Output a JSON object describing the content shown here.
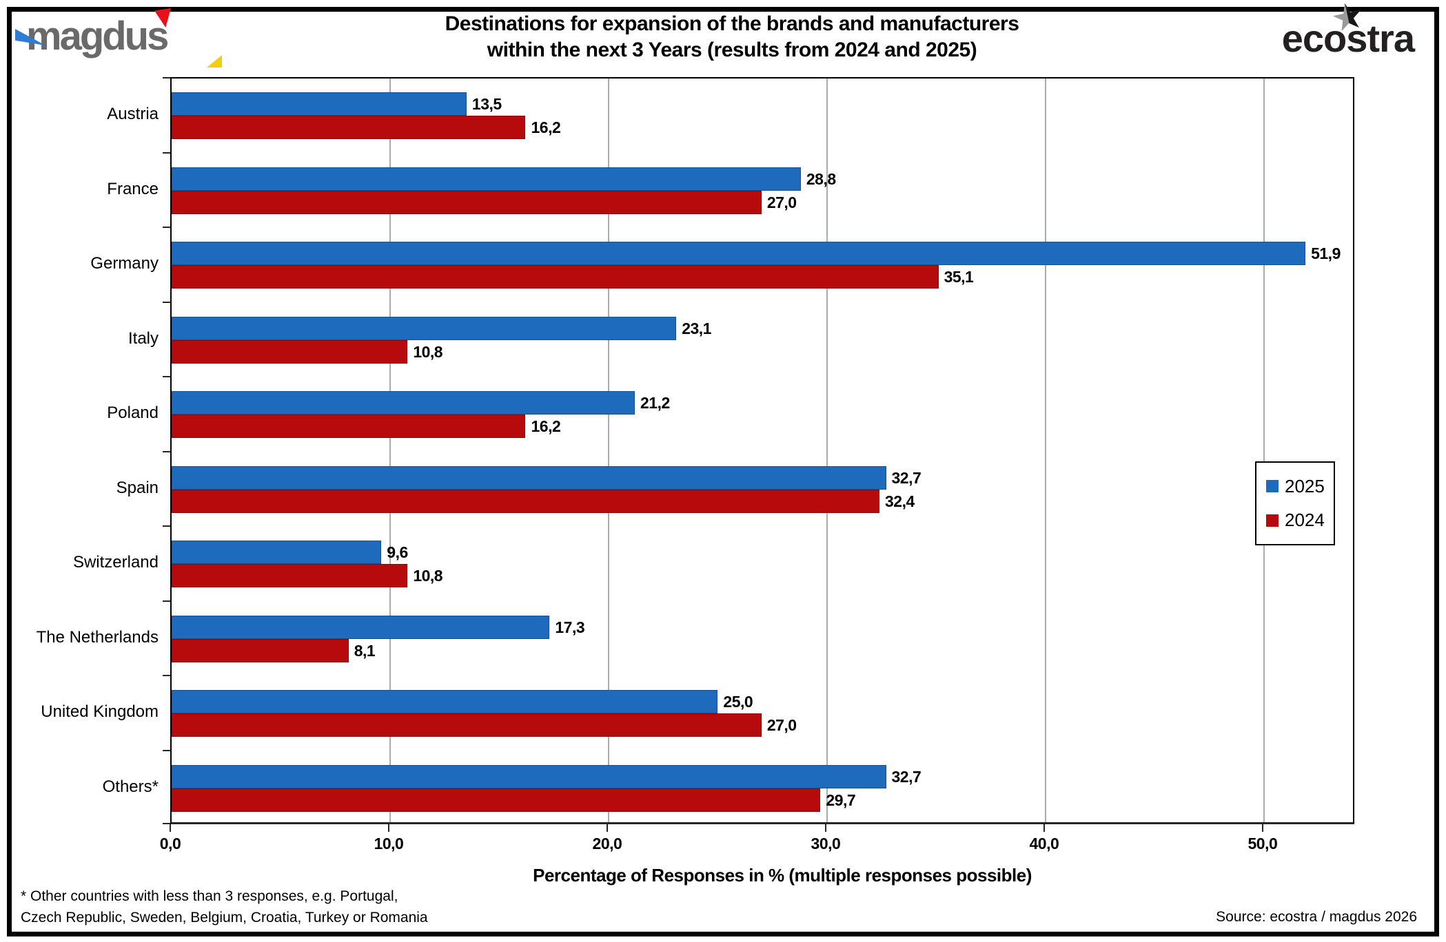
{
  "header": {
    "magdus_logo_text": "magdus",
    "title_line1": "Destinations for expansion of the brands and manufacturers",
    "title_line2": "within the next 3 Years (results from 2024 and 2025)",
    "ecostra_logo_text": "ecostra",
    "ecostra_star_glyph": "★"
  },
  "chart_data": {
    "type": "bar",
    "orientation": "horizontal",
    "title": "Destinations for expansion of the brands and manufacturers within the next 3 Years (results from 2024 and 2025)",
    "categories": [
      "Austria",
      "France",
      "Germany",
      "Italy",
      "Poland",
      "Spain",
      "Switzerland",
      "The Netherlands",
      "United Kingdom",
      "Others*"
    ],
    "series": [
      {
        "name": "2025",
        "color": "#1e6bbe",
        "values": [
          13.5,
          28.8,
          51.9,
          23.1,
          21.2,
          32.7,
          9.6,
          17.3,
          25.0,
          32.7
        ],
        "labels": [
          "13,5",
          "28,8",
          "51,9",
          "23,1",
          "21,2",
          "32,7",
          "9,6",
          "17,3",
          "25,0",
          "32,7"
        ]
      },
      {
        "name": "2024",
        "color": "#b70a0d",
        "values": [
          16.2,
          27.0,
          35.1,
          10.8,
          16.2,
          32.4,
          10.8,
          8.1,
          27.0,
          29.7
        ],
        "labels": [
          "16,2",
          "27,0",
          "35,1",
          "10,8",
          "16,2",
          "32,4",
          "10,8",
          "8,1",
          "27,0",
          "29,7"
        ]
      }
    ],
    "xlabel": "Percentage of Responses in % (multiple responses possible)",
    "x_ticks": [
      0,
      10,
      20,
      30,
      40,
      50
    ],
    "x_tick_labels": [
      "0,0",
      "10,0",
      "20,0",
      "30,0",
      "40,0",
      "50,0"
    ],
    "xlim": [
      0,
      54.2
    ],
    "grid": true,
    "legend_position": "right-inside",
    "legend_entries": [
      "2025",
      "2024"
    ]
  },
  "footer": {
    "footnote_line1": "* Other countries with less than 3 responses, e.g. Portugal,",
    "footnote_line2": "Czech Republic, Sweden, Belgium, Croatia, Turkey or Romania",
    "source": "Source: ecostra / magdus 2026"
  },
  "colors": {
    "bar_2025": "#1e6bbe",
    "bar_2024": "#b70a0d",
    "gridline": "#ababab",
    "magdus_gray": "#6a6a6a",
    "magdus_blue": "#2e7cd6",
    "magdus_red": "#e8101b",
    "magdus_yellow": "#f2ce0d"
  }
}
